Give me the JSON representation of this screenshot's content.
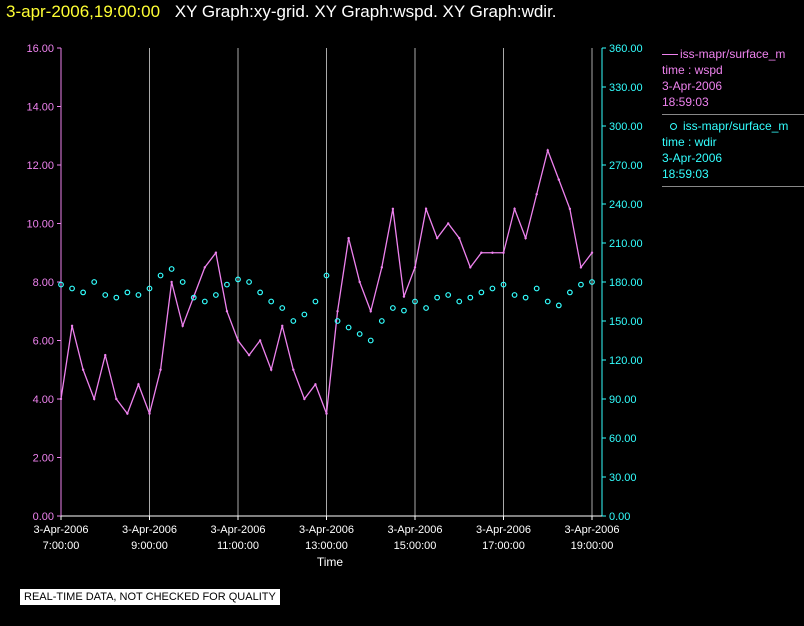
{
  "header": {
    "timestamp": "3-apr-2006,19:00:00",
    "description": "XY Graph:xy-grid.  XY Graph:wspd.  XY Graph:wdir."
  },
  "footer": {
    "disclaimer": "REAL-TIME DATA, NOT CHECKED FOR QUALITY"
  },
  "legend": [
    {
      "series": "iss-mapr/surface_m",
      "field": "time : wspd",
      "date": "3-Apr-2006",
      "time": "18:59:03",
      "color": "#ee82ee",
      "marker": "line"
    },
    {
      "series": "iss-mapr/surface_m",
      "field": "time : wdir",
      "date": "3-Apr-2006",
      "time": "18:59:03",
      "color": "#33ffff",
      "marker": "circle"
    }
  ],
  "chart_data": {
    "type": "line",
    "xlabel": "Time",
    "x_ticks": [
      {
        "date": "3-Apr-2006",
        "time": "7:00:00",
        "hour": 7
      },
      {
        "date": "3-Apr-2006",
        "time": "9:00:00",
        "hour": 9
      },
      {
        "date": "3-Apr-2006",
        "time": "11:00:00",
        "hour": 11
      },
      {
        "date": "3-Apr-2006",
        "time": "13:00:00",
        "hour": 13
      },
      {
        "date": "3-Apr-2006",
        "time": "15:00:00",
        "hour": 15
      },
      {
        "date": "3-Apr-2006",
        "time": "17:00:00",
        "hour": 17
      },
      {
        "date": "3-Apr-2006",
        "time": "19:00:00",
        "hour": 19
      }
    ],
    "xlim_hours": [
      7,
      19
    ],
    "grid": "vertical lines at each x tick",
    "left_axis": {
      "color": "#ee82ee",
      "ylim": [
        0,
        16
      ],
      "ticks": [
        "0.00",
        "2.00",
        "4.00",
        "6.00",
        "8.00",
        "10.00",
        "12.00",
        "14.00",
        "16.00"
      ]
    },
    "right_axis": {
      "color": "#33ffff",
      "ylim": [
        0,
        360
      ],
      "ticks": [
        "0.00",
        "30.00",
        "60.00",
        "90.00",
        "120.00",
        "150.00",
        "180.00",
        "210.00",
        "240.00",
        "270.00",
        "300.00",
        "330.00",
        "360.00"
      ]
    },
    "series": [
      {
        "field": "wspd",
        "axis": "left",
        "style": "line",
        "color": "#ee82ee",
        "x_hours": [
          7.0,
          7.25,
          7.5,
          7.75,
          8.0,
          8.25,
          8.5,
          8.75,
          9.0,
          9.25,
          9.5,
          9.75,
          10.0,
          10.25,
          10.5,
          10.75,
          11.0,
          11.25,
          11.5,
          11.75,
          12.0,
          12.25,
          12.5,
          12.75,
          13.0,
          13.25,
          13.5,
          13.75,
          14.0,
          14.25,
          14.5,
          14.75,
          15.0,
          15.25,
          15.5,
          15.75,
          16.0,
          16.25,
          16.5,
          16.75,
          17.0,
          17.25,
          17.5,
          17.75,
          18.0,
          18.25,
          18.5,
          18.75,
          19.0
        ],
        "values": [
          4.0,
          6.5,
          5.0,
          4.0,
          5.5,
          4.0,
          3.5,
          4.5,
          3.5,
          5.0,
          8.0,
          6.5,
          7.5,
          8.5,
          9.0,
          7.0,
          6.0,
          5.5,
          6.0,
          5.0,
          6.5,
          5.0,
          4.0,
          4.5,
          3.5,
          7.0,
          9.5,
          8.0,
          7.0,
          8.5,
          10.5,
          7.5,
          8.5,
          10.5,
          9.5,
          10.0,
          9.5,
          8.5,
          9.0,
          9.0,
          9.0,
          10.5,
          9.5,
          11.0,
          12.5,
          11.5,
          10.5,
          8.5,
          9.0
        ]
      },
      {
        "field": "wdir",
        "axis": "right",
        "style": "circles",
        "color": "#33ffff",
        "x_hours": [
          7.0,
          7.25,
          7.5,
          7.75,
          8.0,
          8.25,
          8.5,
          8.75,
          9.0,
          9.25,
          9.5,
          9.75,
          10.0,
          10.25,
          10.5,
          10.75,
          11.0,
          11.25,
          11.5,
          11.75,
          12.0,
          12.25,
          12.5,
          12.75,
          13.0,
          13.25,
          13.5,
          13.75,
          14.0,
          14.25,
          14.5,
          14.75,
          15.0,
          15.25,
          15.5,
          15.75,
          16.0,
          16.25,
          16.5,
          16.75,
          17.0,
          17.25,
          17.5,
          17.75,
          18.0,
          18.25,
          18.5,
          18.75,
          19.0
        ],
        "values": [
          178,
          175,
          172,
          180,
          170,
          168,
          172,
          170,
          175,
          185,
          190,
          180,
          168,
          165,
          170,
          178,
          182,
          180,
          172,
          165,
          160,
          150,
          155,
          165,
          185,
          150,
          145,
          140,
          135,
          150,
          160,
          158,
          165,
          160,
          168,
          170,
          165,
          168,
          172,
          175,
          178,
          170,
          168,
          175,
          165,
          162,
          172,
          178,
          180
        ]
      }
    ]
  }
}
